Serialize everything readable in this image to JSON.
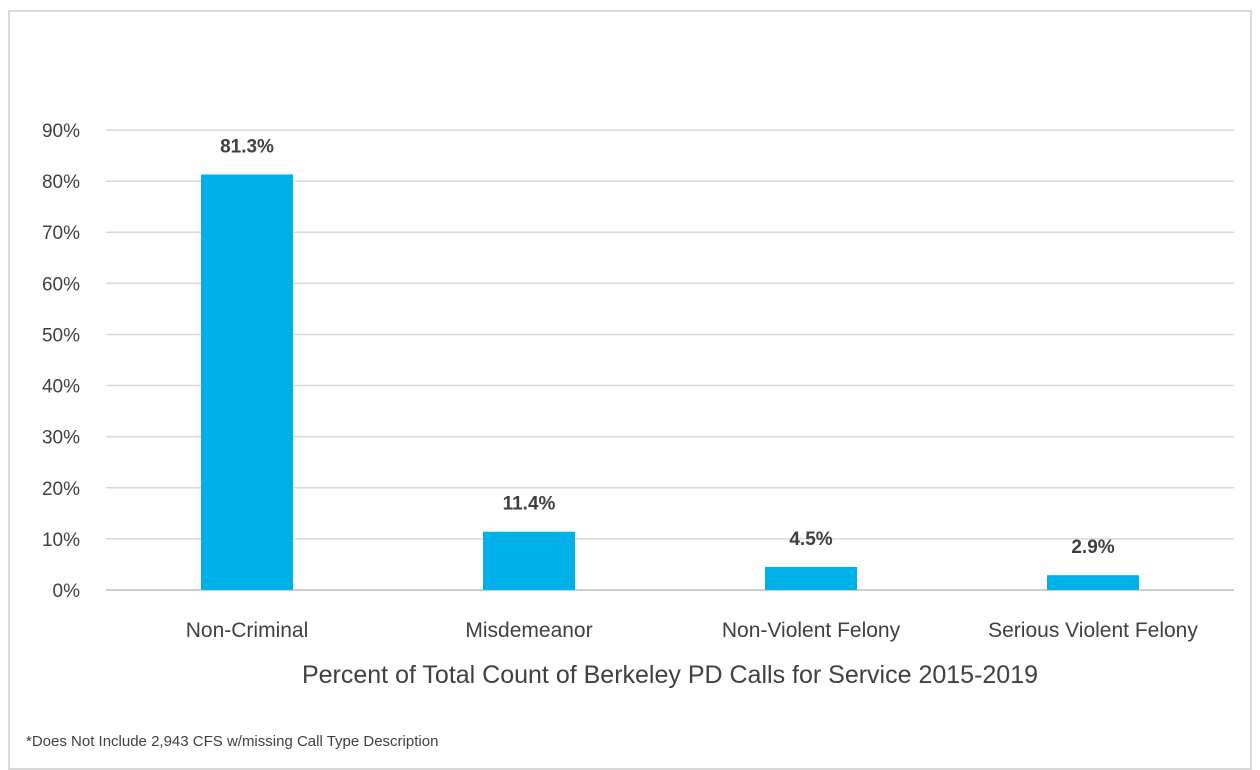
{
  "chart_data": {
    "type": "bar",
    "categories": [
      "Non-Criminal",
      "Misdemeanor",
      "Non-Violent Felony",
      "Serious Violent Felony"
    ],
    "values": [
      81.3,
      11.4,
      4.5,
      2.9
    ],
    "data_labels": [
      "81.3%",
      "11.4%",
      "4.5%",
      "2.9%"
    ],
    "xlabel": "Percent of Total Count of Berkeley PD Calls for Service 2015-2019",
    "ylabel": "",
    "ylim": [
      0,
      90
    ],
    "y_ticks": [
      "0%",
      "10%",
      "20%",
      "30%",
      "40%",
      "50%",
      "60%",
      "70%",
      "80%",
      "90%"
    ],
    "grid": true,
    "legend": "none",
    "bar_color": "#00b0e8",
    "grid_color": "#d9d9d9"
  },
  "footnote": "*Does Not Include 2,943 CFS w/missing Call Type Description"
}
